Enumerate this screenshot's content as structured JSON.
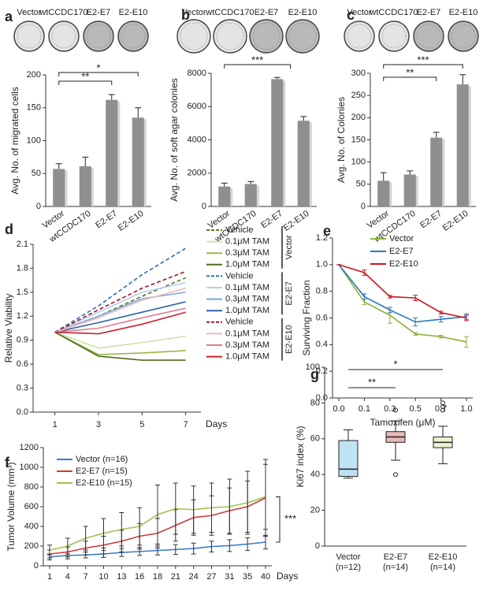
{
  "chart_data": [
    {
      "type": "bar",
      "label": "a",
      "image_labels": [
        "Vector",
        "wtCCDC170",
        "E2-E7",
        "E2-E10"
      ],
      "ylabel": "Avg. No. of migrated cells",
      "categories": [
        "Vector",
        "wtCCDC170",
        "E2-E7",
        "E2-E10"
      ],
      "values": [
        57,
        61,
        162,
        135
      ],
      "errors": [
        8,
        14,
        8,
        15
      ],
      "color": "#8f8f8f",
      "ylim": [
        0,
        200
      ],
      "yticks": [
        0,
        50,
        100,
        150,
        200
      ],
      "annotations": [
        "*",
        "**"
      ]
    },
    {
      "type": "bar",
      "label": "b",
      "image_labels": [
        "Vector",
        "wtCCDC170",
        "E2-E7",
        "E2-E10"
      ],
      "ylabel": "Avg. No. of soft agar colonies",
      "categories": [
        "Vector",
        "wtCCDC170",
        "E2-E7",
        "E2-E10"
      ],
      "values": [
        1200,
        1350,
        7650,
        5150
      ],
      "errors": [
        200,
        150,
        100,
        250
      ],
      "color": "#8f8f8f",
      "ylim": [
        0,
        8000
      ],
      "yticks": [
        0,
        2000,
        4000,
        6000,
        8000
      ],
      "annotations": [
        "***"
      ]
    },
    {
      "type": "bar",
      "label": "c",
      "image_labels": [
        "Vector",
        "wtCCDC170",
        "E2-E7",
        "E2-E10"
      ],
      "ylabel": "Avg. No. of Colonies",
      "categories": [
        "Vector",
        "wtCCDC170",
        "E2-E7",
        "E2-E10"
      ],
      "values": [
        58,
        72,
        155,
        275
      ],
      "errors": [
        18,
        8,
        12,
        22
      ],
      "color": "#8f8f8f",
      "ylim": [
        0,
        300
      ],
      "yticks": [
        0,
        50,
        100,
        150,
        200,
        250,
        300
      ],
      "annotations": [
        "***",
        "**"
      ]
    },
    {
      "type": "line",
      "label": "d",
      "ylabel": "Relative Viability",
      "xlabel": "Days",
      "x": [
        1,
        3,
        5,
        7
      ],
      "xlim": [
        0,
        7.7
      ],
      "xticks": [
        1,
        3,
        5,
        7
      ],
      "ylim": [
        0,
        2.1
      ],
      "yticks": [
        {
          "value": 0,
          "label": "0.0"
        },
        0.3,
        0.6,
        0.9,
        1.2,
        1.5,
        1.8,
        2.1
      ],
      "legend_groups": [
        "Vector",
        "E2-E7",
        "E2-E10"
      ],
      "series": [
        {
          "name": "Vehicle",
          "color": "#5a7a1e",
          "dash": true,
          "values": [
            1,
            1.2,
            1.45,
            1.68
          ]
        },
        {
          "name": "0.1μM TAM",
          "color": "#cfdfa6",
          "values": [
            1,
            0.8,
            0.87,
            0.95
          ]
        },
        {
          "name": "0.3μM TAM",
          "color": "#9bb84a",
          "values": [
            1,
            0.72,
            0.74,
            0.77
          ]
        },
        {
          "name": "1.0μM TAM",
          "color": "#4f6b1a",
          "values": [
            1,
            0.7,
            0.65,
            0.65
          ]
        },
        {
          "name": "Vehicle",
          "color": "#2f6fb5",
          "dash": true,
          "values": [
            1,
            1.33,
            1.72,
            2.05
          ]
        },
        {
          "name": "0.1μM TAM",
          "color": "#b4d0ec",
          "values": [
            1,
            1.25,
            1.5,
            1.62
          ]
        },
        {
          "name": "0.3μM TAM",
          "color": "#79a9d8",
          "values": [
            1,
            1.2,
            1.42,
            1.5
          ]
        },
        {
          "name": "1.0μM TAM",
          "color": "#2a64a8",
          "values": [
            1,
            1.12,
            1.25,
            1.38
          ]
        },
        {
          "name": "Vehicle",
          "color": "#a3162a",
          "dash": true,
          "values": [
            1,
            1.28,
            1.55,
            1.76
          ]
        },
        {
          "name": "0.1μM TAM",
          "color": "#f2b8c1",
          "values": [
            1,
            1.18,
            1.4,
            1.55
          ]
        },
        {
          "name": "0.3μM TAM",
          "color": "#e07b8a",
          "values": [
            1,
            1.05,
            1.18,
            1.3
          ]
        },
        {
          "name": "1.0μM TAM",
          "color": "#c8202e",
          "values": [
            1,
            0.98,
            1.1,
            1.25
          ]
        }
      ]
    },
    {
      "type": "line",
      "label": "e",
      "ylabel": "Surviving Fraction",
      "xlabel": "Tamoxifen (μM)",
      "categories": [
        "0.0",
        "0.1",
        "0.3",
        "0.5",
        "0.7",
        "1.0"
      ],
      "ylim": [
        0,
        1.2
      ],
      "yticks": [
        {
          "value": 0,
          "label": "0.0"
        },
        0.2,
        0.4,
        0.6,
        0.8,
        {
          "value": 1,
          "label": "1.0"
        },
        1.2
      ],
      "series": [
        {
          "name": "Vector",
          "color": "#8db33a",
          "values": [
            1.0,
            0.72,
            0.62,
            0.48,
            0.46,
            0.42
          ],
          "errors": [
            0,
            0.02,
            0.06,
            0.01,
            0.01,
            0.04
          ]
        },
        {
          "name": "E2-E7",
          "color": "#2a78c2",
          "values": [
            1.0,
            0.76,
            0.66,
            0.57,
            0.59,
            0.61
          ],
          "errors": [
            0,
            0.02,
            0.02,
            0.03,
            0.02,
            0.02
          ]
        },
        {
          "name": "E2-E10",
          "color": "#c8151e",
          "values": [
            1.0,
            0.94,
            0.76,
            0.75,
            0.64,
            0.6
          ],
          "errors": [
            0,
            0.02,
            0.01,
            0.02,
            0.01,
            0.02
          ]
        }
      ]
    },
    {
      "type": "line",
      "label": "f",
      "ylabel": "Tumor Volume (mm³)",
      "xlabel": "Days",
      "categories": [
        "1",
        "4",
        "7",
        "10",
        "13",
        "16",
        "18",
        "21",
        "24",
        "27",
        "31",
        "35",
        "40"
      ],
      "ylim": [
        0,
        1200
      ],
      "yticks": [
        0,
        200,
        400,
        600,
        800,
        1000,
        1200
      ],
      "annotations": [
        "***"
      ],
      "series": [
        {
          "name": "Vector (n=16)",
          "color": "#3a78c8",
          "values": [
            90,
            105,
            110,
            120,
            135,
            145,
            155,
            165,
            175,
            195,
            205,
            220,
            240
          ],
          "errors": [
            30,
            35,
            30,
            35,
            40,
            40,
            45,
            50,
            55,
            55,
            60,
            65,
            70
          ]
        },
        {
          "name": "E2-E7 (n=15)",
          "color": "#d03a3a",
          "values": [
            120,
            140,
            180,
            210,
            250,
            300,
            330,
            410,
            490,
            510,
            560,
            600,
            690
          ],
          "errors": [
            40,
            50,
            70,
            90,
            110,
            130,
            150,
            160,
            180,
            200,
            230,
            260,
            390
          ]
        },
        {
          "name": "E2-E10 (n=15)",
          "color": "#9cc44a",
          "values": [
            160,
            200,
            280,
            330,
            370,
            400,
            520,
            580,
            570,
            590,
            600,
            640,
            700
          ],
          "errors": [
            50,
            80,
            120,
            150,
            170,
            190,
            300,
            260,
            240,
            250,
            280,
            320,
            330
          ]
        }
      ]
    },
    {
      "type": "box",
      "label": "g",
      "ylabel": "Ki67 index (%)",
      "categories": [
        "Vector",
        "E2-E7",
        "E2-E10"
      ],
      "n_labels": [
        "(n=12)",
        "(n=14)",
        "(n=14)"
      ],
      "colors": [
        "#bfe3f2",
        "#e6b9b8",
        "#eef2cf"
      ],
      "boxes": [
        {
          "min": 38,
          "q1": 39,
          "median": 43,
          "q3": 59,
          "max": 65,
          "outliers": []
        },
        {
          "min": 48,
          "q1": 58,
          "median": 61,
          "q3": 64,
          "max": 70,
          "outliers": [
            40,
            76
          ]
        },
        {
          "min": 46,
          "q1": 55,
          "median": 58,
          "q3": 61,
          "max": 67,
          "outliers": [
            76,
            78,
            80
          ]
        }
      ],
      "ylim": [
        0,
        100
      ],
      "yticks": [
        0,
        20,
        40,
        60,
        80,
        100
      ],
      "annotations": [
        "**",
        "*"
      ]
    }
  ]
}
